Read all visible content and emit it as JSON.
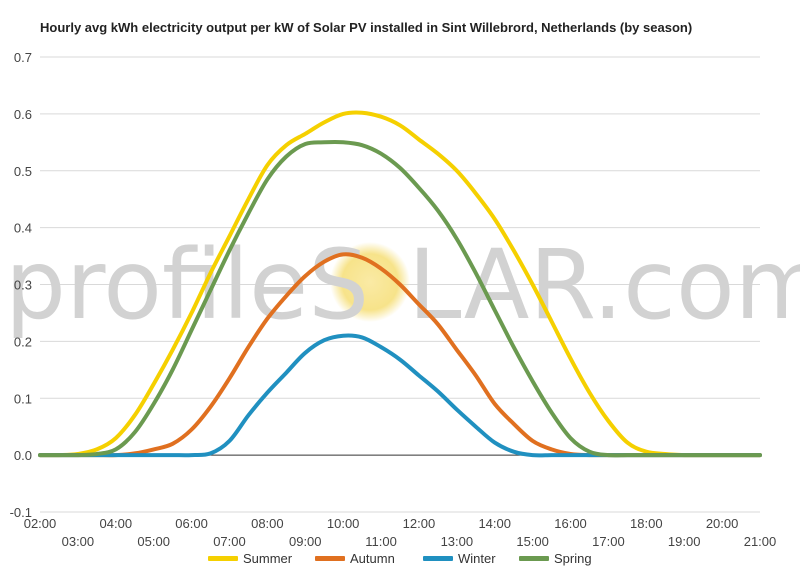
{
  "chart_data": {
    "type": "line",
    "title": "Hourly avg kWh electricity output per kW of Solar PV installed in Sint Willebrord, Netherlands (by season)",
    "xlabel": "",
    "ylabel": "",
    "ylim": [
      -0.1,
      0.7
    ],
    "yticks": [
      "-0.1",
      "0.0",
      "0.1",
      "0.2",
      "0.3",
      "0.4",
      "0.5",
      "0.6",
      "0.7"
    ],
    "x": [
      2,
      2.5,
      3,
      3.5,
      4,
      4.5,
      5,
      5.5,
      6,
      6.5,
      7,
      7.5,
      8,
      8.5,
      9,
      9.5,
      10,
      10.5,
      11,
      11.5,
      12,
      12.5,
      13,
      13.5,
      14,
      14.5,
      15,
      15.5,
      16,
      16.5,
      17,
      17.5,
      18,
      18.5,
      19,
      19.5,
      20,
      20.5,
      21
    ],
    "xticks_top": [
      "02:00",
      "04:00",
      "06:00",
      "08:00",
      "10:00",
      "12:00",
      "14:00",
      "16:00",
      "18:00",
      "20:00"
    ],
    "xticks_bottom": [
      "03:00",
      "05:00",
      "07:00",
      "09:00",
      "11:00",
      "13:00",
      "15:00",
      "17:00",
      "19:00",
      "21:00"
    ],
    "legend_position": "bottom",
    "grid": true,
    "series": [
      {
        "name": "Summer",
        "color": "#f5d000",
        "values": [
          0,
          0,
          0.002,
          0.01,
          0.03,
          0.07,
          0.125,
          0.185,
          0.25,
          0.32,
          0.385,
          0.45,
          0.51,
          0.545,
          0.565,
          0.585,
          0.6,
          0.602,
          0.595,
          0.58,
          0.555,
          0.53,
          0.5,
          0.46,
          0.415,
          0.36,
          0.3,
          0.235,
          0.17,
          0.11,
          0.06,
          0.022,
          0.006,
          0.002,
          0,
          0,
          0,
          0,
          0
        ]
      },
      {
        "name": "Autumn",
        "color": "#e07020",
        "values": [
          0,
          0,
          0,
          0,
          0,
          0.003,
          0.01,
          0.02,
          0.045,
          0.085,
          0.135,
          0.19,
          0.24,
          0.28,
          0.315,
          0.34,
          0.353,
          0.347,
          0.328,
          0.3,
          0.265,
          0.23,
          0.185,
          0.14,
          0.09,
          0.055,
          0.025,
          0.01,
          0.002,
          0,
          0,
          0,
          0,
          0,
          0,
          0,
          0,
          0,
          0
        ]
      },
      {
        "name": "Winter",
        "color": "#2090c0",
        "values": [
          0,
          0,
          0,
          0,
          0,
          0,
          0,
          0,
          0,
          0.003,
          0.025,
          0.07,
          0.11,
          0.145,
          0.18,
          0.202,
          0.21,
          0.207,
          0.19,
          0.168,
          0.14,
          0.112,
          0.08,
          0.05,
          0.022,
          0.006,
          0,
          0,
          0,
          0,
          0,
          0,
          0,
          0,
          0,
          0,
          0,
          0,
          0
        ]
      },
      {
        "name": "Spring",
        "color": "#6b9a50",
        "values": [
          0,
          0,
          0,
          0.002,
          0.01,
          0.04,
          0.09,
          0.15,
          0.22,
          0.29,
          0.36,
          0.425,
          0.485,
          0.525,
          0.547,
          0.55,
          0.55,
          0.545,
          0.53,
          0.505,
          0.47,
          0.43,
          0.38,
          0.32,
          0.255,
          0.19,
          0.13,
          0.075,
          0.03,
          0.006,
          0,
          0,
          0,
          0,
          0,
          0,
          0,
          0,
          0
        ]
      }
    ]
  },
  "watermark": {
    "before": "profileS",
    "after": "LAR.com",
    "sun_color": "#f7e38a"
  }
}
